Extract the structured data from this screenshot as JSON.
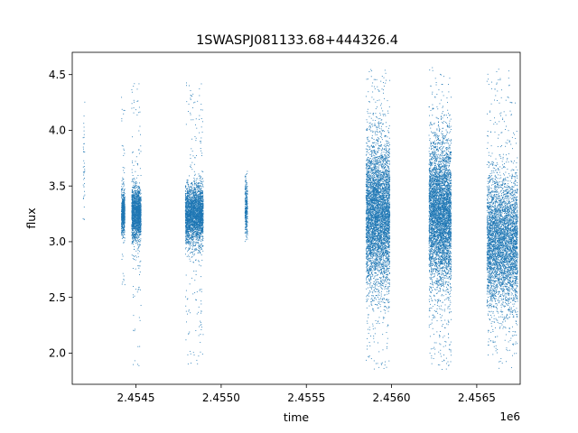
{
  "chart_data": {
    "type": "scatter",
    "title": "1SWASPJ081133.68+444326.4",
    "xlabel": "time",
    "ylabel": "flux",
    "x_offset_label": "1e6",
    "xlim": [
      2454126,
      2456755
    ],
    "ylim": [
      1.72,
      4.7
    ],
    "x_ticks": [
      2454500,
      2455000,
      2455500,
      2456000,
      2456500
    ],
    "x_tick_labels": [
      "2.4545",
      "2.4550",
      "2.4555",
      "2.4560",
      "2.4565"
    ],
    "y_ticks": [
      2.0,
      2.5,
      3.0,
      3.5,
      4.0,
      4.5
    ],
    "y_tick_labels": [
      "2.0",
      "2.5",
      "3.0",
      "3.5",
      "4.0",
      "4.5"
    ],
    "grid": false,
    "legend": "none",
    "marker_color": "#1f77b4",
    "clusters": [
      {
        "x_start": 2454190,
        "x_end": 2454200,
        "y_center": 3.7,
        "y_spread": 0.35,
        "y_min": 3.2,
        "y_max": 4.55,
        "density": 40
      },
      {
        "x_start": 2454415,
        "x_end": 2454435,
        "y_center": 3.25,
        "y_spread": 0.09,
        "y_min": 2.5,
        "y_max": 4.35,
        "density": 700
      },
      {
        "x_start": 2454475,
        "x_end": 2454530,
        "y_center": 3.25,
        "y_spread": 0.12,
        "y_min": 1.85,
        "y_max": 4.45,
        "density": 1800
      },
      {
        "x_start": 2454790,
        "x_end": 2454895,
        "y_center": 3.25,
        "y_spread": 0.13,
        "y_min": 1.9,
        "y_max": 4.45,
        "density": 3000
      },
      {
        "x_start": 2455140,
        "x_end": 2455155,
        "y_center": 3.3,
        "y_spread": 0.12,
        "y_min": 3.0,
        "y_max": 3.65,
        "density": 300
      },
      {
        "x_start": 2455850,
        "x_end": 2455990,
        "y_center": 3.25,
        "y_spread": 0.32,
        "y_min": 1.85,
        "y_max": 4.55,
        "density": 5000
      },
      {
        "x_start": 2456220,
        "x_end": 2456350,
        "y_center": 3.25,
        "y_spread": 0.32,
        "y_min": 1.85,
        "y_max": 4.57,
        "density": 5000
      },
      {
        "x_start": 2456560,
        "x_end": 2456740,
        "y_center": 3.0,
        "y_spread": 0.3,
        "y_min": 1.85,
        "y_max": 4.55,
        "density": 4500
      }
    ]
  }
}
